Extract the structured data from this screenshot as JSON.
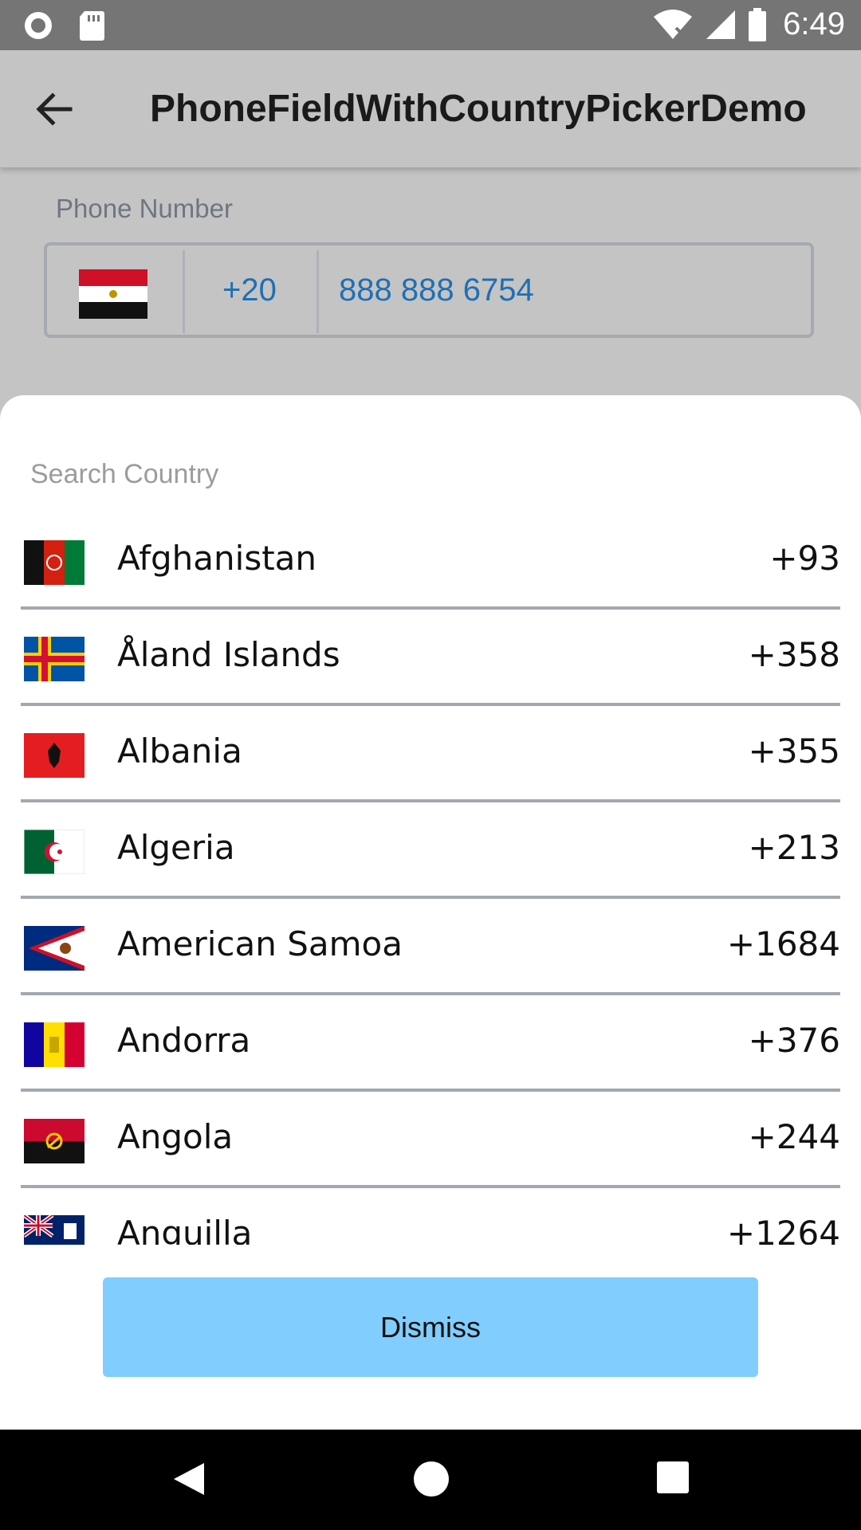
{
  "status_bar": {
    "time": "6:49",
    "icons": [
      "circle-icon",
      "sd-card-icon",
      "wifi-icon",
      "signal-icon",
      "battery-icon"
    ]
  },
  "app_bar": {
    "title": "PhoneFieldWithCountryPickerDemo",
    "back_icon": "arrow-back-icon"
  },
  "phone_field": {
    "label": "Phone Number",
    "selected_country_flag": "egypt-flag-icon",
    "dial_code": "+20",
    "number": "888 888 6754"
  },
  "country_picker": {
    "search_placeholder": "Search Country",
    "countries": [
      {
        "name": "Afghanistan",
        "code": "+93",
        "flag": "afghanistan-flag-icon"
      },
      {
        "name": "Åland Islands",
        "code": "+358",
        "flag": "aland-islands-flag-icon"
      },
      {
        "name": "Albania",
        "code": "+355",
        "flag": "albania-flag-icon"
      },
      {
        "name": "Algeria",
        "code": "+213",
        "flag": "algeria-flag-icon"
      },
      {
        "name": "American Samoa",
        "code": "+1684",
        "flag": "american-samoa-flag-icon"
      },
      {
        "name": "Andorra",
        "code": "+376",
        "flag": "andorra-flag-icon"
      },
      {
        "name": "Angola",
        "code": "+244",
        "flag": "angola-flag-icon"
      },
      {
        "name": "Anguilla",
        "code": "+1264",
        "flag": "anguilla-flag-icon"
      }
    ],
    "dismiss_label": "Dismiss"
  },
  "colors": {
    "dismiss_button": "#81cdfd",
    "link_blue": "#1f6fb5",
    "scrim": "#c4c4c4"
  },
  "nav_bar": {
    "icons": [
      "nav-back-icon",
      "nav-home-icon",
      "nav-recents-icon"
    ]
  }
}
